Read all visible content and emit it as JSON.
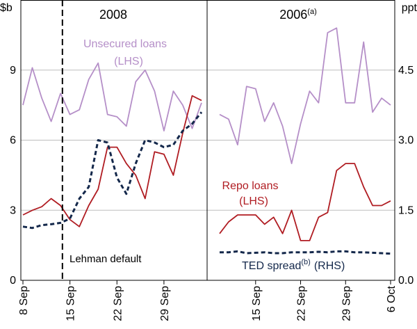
{
  "chart_data": {
    "type": "line",
    "left_unit": "$b",
    "right_unit": "ppt",
    "y_left_ticks": [
      "0",
      "3",
      "6",
      "9"
    ],
    "y_right_ticks": [
      "0.0",
      "1.5",
      "3.0",
      "4.5"
    ],
    "ylim_left": [
      0,
      12
    ],
    "ylim_right": [
      0,
      6
    ],
    "grid": true,
    "annotation": "Lehman default",
    "colors": {
      "unsecured": "#b58fc8",
      "repo": "#b01c22",
      "ted": "#14284b",
      "grid": "#bdbdbd"
    },
    "panels": [
      {
        "title": "2008",
        "title_sup": "",
        "x_ticks": [
          "8 Sep",
          "15 Sep",
          "22 Sep",
          "29 Sep"
        ],
        "series": [
          {
            "name": "Unsecured loans",
            "axis": "LHS",
            "values": [
              7.5,
              9.1,
              7.8,
              6.8,
              8.0,
              7.1,
              7.3,
              8.6,
              9.3,
              7.1,
              7.0,
              6.6,
              8.5,
              9.0,
              8.1,
              6.4,
              8.1,
              7.5,
              6.5,
              7.6
            ]
          },
          {
            "name": "Repo loans",
            "axis": "LHS",
            "values": [
              2.8,
              3.0,
              3.15,
              3.5,
              3.2,
              2.6,
              2.3,
              3.2,
              3.9,
              5.7,
              5.7,
              5.0,
              4.5,
              3.5,
              5.5,
              5.4,
              4.5,
              6.3,
              7.9,
              7.7
            ]
          },
          {
            "name": "TED spread",
            "axis": "RHS",
            "values": [
              1.15,
              1.12,
              1.18,
              1.2,
              1.23,
              1.32,
              1.75,
              2.0,
              3.0,
              2.95,
              2.2,
              1.85,
              2.5,
              3.0,
              2.95,
              2.85,
              2.9,
              3.2,
              3.35,
              3.6
            ]
          }
        ]
      },
      {
        "title": "2006",
        "title_sup": "(a)",
        "x_ticks": [
          "15 Sep",
          "22 Sep",
          "29 Sep",
          "6 Oct"
        ],
        "series": [
          {
            "name": "Unsecured loans",
            "axis": "LHS",
            "values": [
              7.1,
              6.9,
              5.8,
              8.3,
              8.2,
              6.8,
              7.6,
              6.6,
              5.0,
              6.7,
              8.1,
              7.6,
              10.6,
              10.8,
              7.6,
              7.6,
              10.2,
              7.2,
              7.8,
              7.5
            ]
          },
          {
            "name": "Repo loans",
            "axis": "LHS",
            "values": [
              2.0,
              2.5,
              2.8,
              2.8,
              2.8,
              2.4,
              2.7,
              2.0,
              3.0,
              1.7,
              1.7,
              2.7,
              2.9,
              4.7,
              5.0,
              5.0,
              4.0,
              3.2,
              3.2,
              3.4
            ]
          },
          {
            "name": "TED spread",
            "axis": "RHS",
            "values": [
              0.6,
              0.6,
              0.62,
              0.58,
              0.59,
              0.6,
              0.58,
              0.58,
              0.6,
              0.6,
              0.6,
              0.61,
              0.6,
              0.62,
              0.62,
              0.6,
              0.6,
              0.59,
              0.58,
              0.57
            ]
          }
        ]
      }
    ],
    "labels": {
      "unsecured": {
        "name": "Unsecured loans",
        "axis": "(LHS)"
      },
      "repo": {
        "name": "Repo loans",
        "axis": "(LHS)"
      },
      "ted": {
        "name": "TED spread",
        "sup": "(b)",
        "axis": "(RHS)"
      }
    }
  }
}
